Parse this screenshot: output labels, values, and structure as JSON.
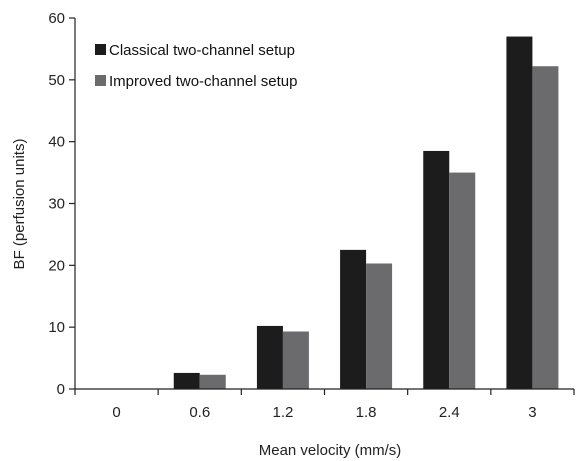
{
  "chart_data": {
    "type": "bar",
    "title": "",
    "xlabel": "Mean velocity (mm/s)",
    "ylabel": "BF (perfusion units)",
    "categories": [
      "0",
      "0.6",
      "1.2",
      "1.8",
      "2.4",
      "3"
    ],
    "ylim": [
      0,
      60
    ],
    "yticks": [
      "0",
      "10",
      "20",
      "30",
      "40",
      "50",
      "60"
    ],
    "grid": false,
    "legend_position": "top-left",
    "series": [
      {
        "name": "Classical two-channel setup",
        "color": "#1c1c1c",
        "values": [
          0,
          2.6,
          10.2,
          22.5,
          38.5,
          57.0
        ]
      },
      {
        "name": "Improved two-channel setup",
        "color": "#6b6b6e",
        "values": [
          0,
          2.3,
          9.3,
          20.3,
          35.0,
          52.2
        ]
      }
    ]
  }
}
